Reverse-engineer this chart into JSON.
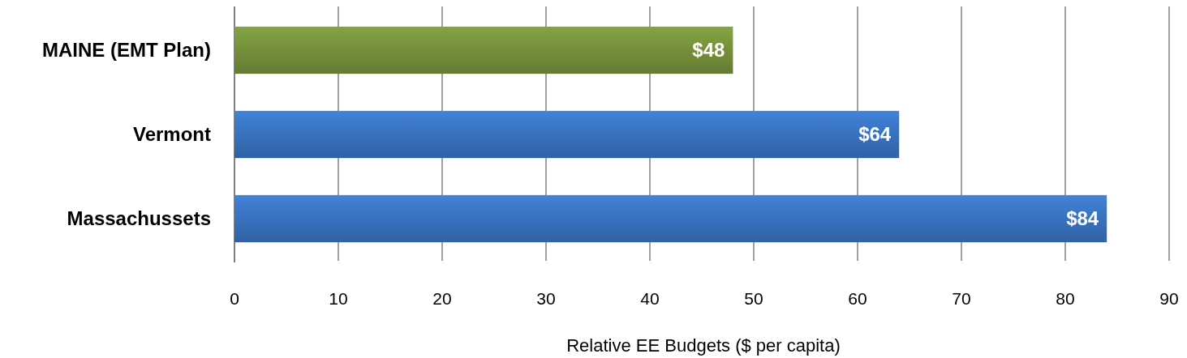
{
  "chart_data": {
    "type": "bar",
    "orientation": "horizontal",
    "categories": [
      "MAINE (EMT Plan)",
      "Vermont",
      "Massachussets"
    ],
    "values": [
      48,
      64,
      84
    ],
    "value_labels": [
      "$48",
      "$64",
      "$84"
    ],
    "colors": [
      "#77933c",
      "#3a75c4",
      "#3a75c4"
    ],
    "xlabel": "Relative EE Budgets ($ per capita)",
    "xlim": [
      0,
      90
    ],
    "xticks": [
      0,
      10,
      20,
      30,
      40,
      50,
      60,
      70,
      80,
      90
    ],
    "grid": "x"
  }
}
